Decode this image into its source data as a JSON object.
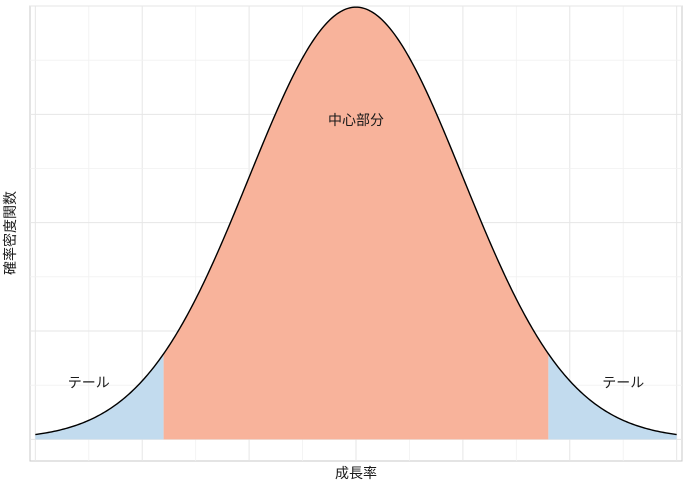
{
  "chart_data": {
    "type": "area",
    "title": "",
    "xlabel": "成長率",
    "ylabel": "確率密度関数",
    "xlim": [
      -3.05,
      3.05
    ],
    "ylim": [
      -0.02,
      0.4
    ],
    "grid": true,
    "legend": "none",
    "distribution": {
      "kind": "normal",
      "mean": 0,
      "sd": 1
    },
    "regions": [
      {
        "name": "テール",
        "from": -3.0,
        "to": -1.8,
        "color": "#c2dbee"
      },
      {
        "name": "中心部分",
        "from": -1.8,
        "to": 1.8,
        "color": "#f8b39b"
      },
      {
        "name": "テール",
        "from": 1.8,
        "to": 3.0,
        "color": "#c2dbee"
      }
    ],
    "annotations": [
      {
        "text": "テール",
        "x": -2.5,
        "y": 0.048
      },
      {
        "text": "中心部分",
        "x": 0.0,
        "y": 0.29
      },
      {
        "text": "テール",
        "x": 2.5,
        "y": 0.048
      }
    ],
    "colors": {
      "curve": "#000000",
      "grid": "#e6e6e6",
      "frame": "#c8c8c8"
    }
  }
}
